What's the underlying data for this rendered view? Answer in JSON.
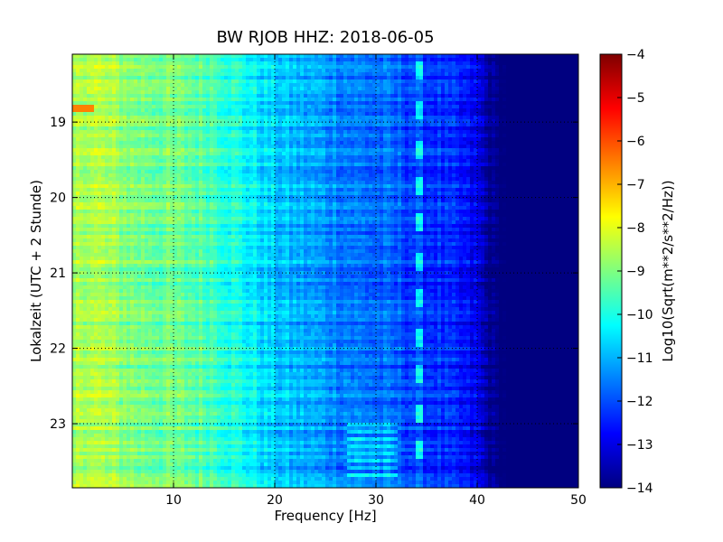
{
  "chart_data": {
    "type": "heatmap",
    "title": "BW RJOB HHZ: 2018-06-05",
    "xlabel": "Frequency [Hz]",
    "ylabel": "Lokalzeit (UTC + 2 Stunde)",
    "xlim": [
      0,
      50
    ],
    "ylim": [
      18.1,
      23.85
    ],
    "y_inverted": true,
    "grid": true,
    "x_ticks": [
      10,
      20,
      30,
      40,
      50
    ],
    "x_tick_labels": [
      "10",
      "20",
      "30",
      "40",
      "50"
    ],
    "y_ticks": [
      19,
      20,
      21,
      22,
      23
    ],
    "y_tick_labels": [
      "19",
      "20",
      "21",
      "22",
      "23"
    ],
    "colormap": "jet",
    "colorbar": {
      "label": "Log10(Sqrt(m**2/s**2/Hz))",
      "vmin": -14,
      "vmax": -4,
      "ticks": [
        -4,
        -5,
        -6,
        -7,
        -8,
        -9,
        -10,
        -11,
        -12,
        -13,
        -14
      ],
      "tick_labels": [
        "−4",
        "−5",
        "−6",
        "−7",
        "−8",
        "−9",
        "−10",
        "−11",
        "−12",
        "−13",
        "−14"
      ]
    },
    "spectrum_profile": {
      "frequency_hz": [
        0,
        1,
        3,
        6,
        10,
        14,
        17,
        20,
        24,
        28,
        32,
        36,
        38,
        40,
        41,
        42,
        50
      ],
      "log10_amplitude": [
        -8.9,
        -8.4,
        -8.6,
        -9.0,
        -9.2,
        -9.5,
        -10.2,
        -10.8,
        -11.2,
        -11.6,
        -11.9,
        -12.3,
        -12.6,
        -13.0,
        -13.7,
        -14.0,
        -14.0
      ]
    },
    "features": [
      {
        "type": "line",
        "frequency_hz": 34.3,
        "note_hours": [
          18.3,
          18.85,
          19.35,
          19.85,
          20.35,
          20.85,
          21.35,
          21.85,
          22.35,
          22.85,
          23.35
        ]
      },
      {
        "type": "burst",
        "frequency_hz": [
          27,
          32
        ],
        "hours": [
          22.95,
          23.7
        ]
      },
      {
        "type": "hotspot",
        "frequency_hz": 1.1,
        "hour": 18.82,
        "log10_amplitude": -6.5
      }
    ]
  }
}
